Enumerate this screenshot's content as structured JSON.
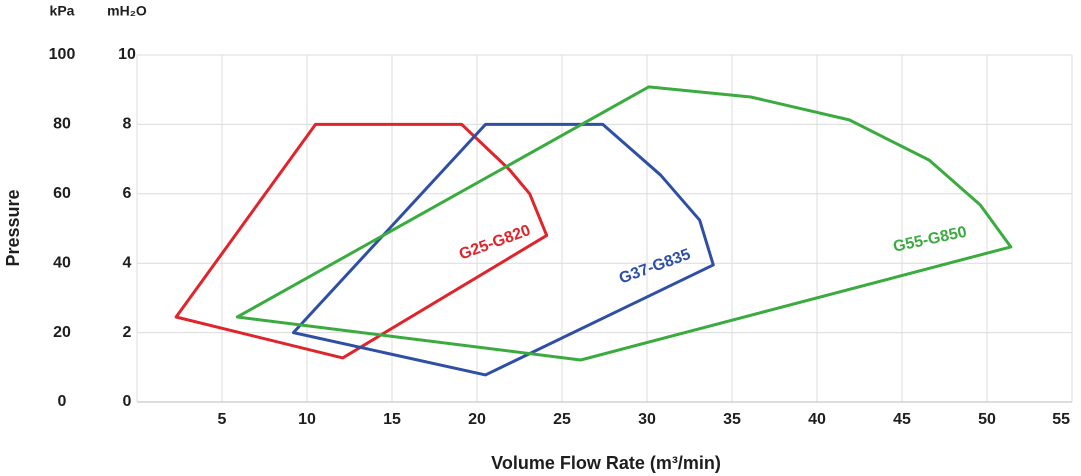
{
  "chart_data": {
    "type": "polygon",
    "ylabel": "Pressure",
    "xlabel": "Volume Flow Rate (m³/min)",
    "y_unit": "kPa",
    "y2_unit": "mH₂O",
    "xlim": [
      0,
      55
    ],
    "xticks": [
      5,
      10,
      15,
      20,
      25,
      30,
      35,
      40,
      45,
      50,
      55
    ],
    "ylim": [
      0,
      100
    ],
    "yticks": [
      0,
      20,
      40,
      60,
      80,
      100
    ],
    "y2lim": [
      0,
      10
    ],
    "y2ticks": [
      0,
      2,
      4,
      6,
      8,
      10
    ],
    "grid": true,
    "series": [
      {
        "name": "G25-G820",
        "color": "#e0242b",
        "x": [
          2.3,
          10.5,
          19.1,
          21.9,
          23.1,
          24.1,
          12.1
        ],
        "y": [
          24.5,
          80,
          80,
          67,
          60,
          48,
          12.7
        ]
      },
      {
        "name": "G37-G835",
        "color": "#2e4fa3",
        "x": [
          9.2,
          20.5,
          27.4,
          30.8,
          33.1,
          33.9,
          20.5
        ],
        "y": [
          20,
          80,
          80,
          65.4,
          52.4,
          39.5,
          7.8
        ]
      },
      {
        "name": "G55-G850",
        "color": "#3aab3f",
        "x": [
          5.9,
          30.1,
          36.1,
          41.9,
          46.6,
          49.6,
          51.4,
          26.1
        ],
        "y": [
          24.5,
          90.8,
          87.9,
          81.3,
          69.7,
          56.8,
          44.7,
          12.1
        ]
      }
    ]
  }
}
